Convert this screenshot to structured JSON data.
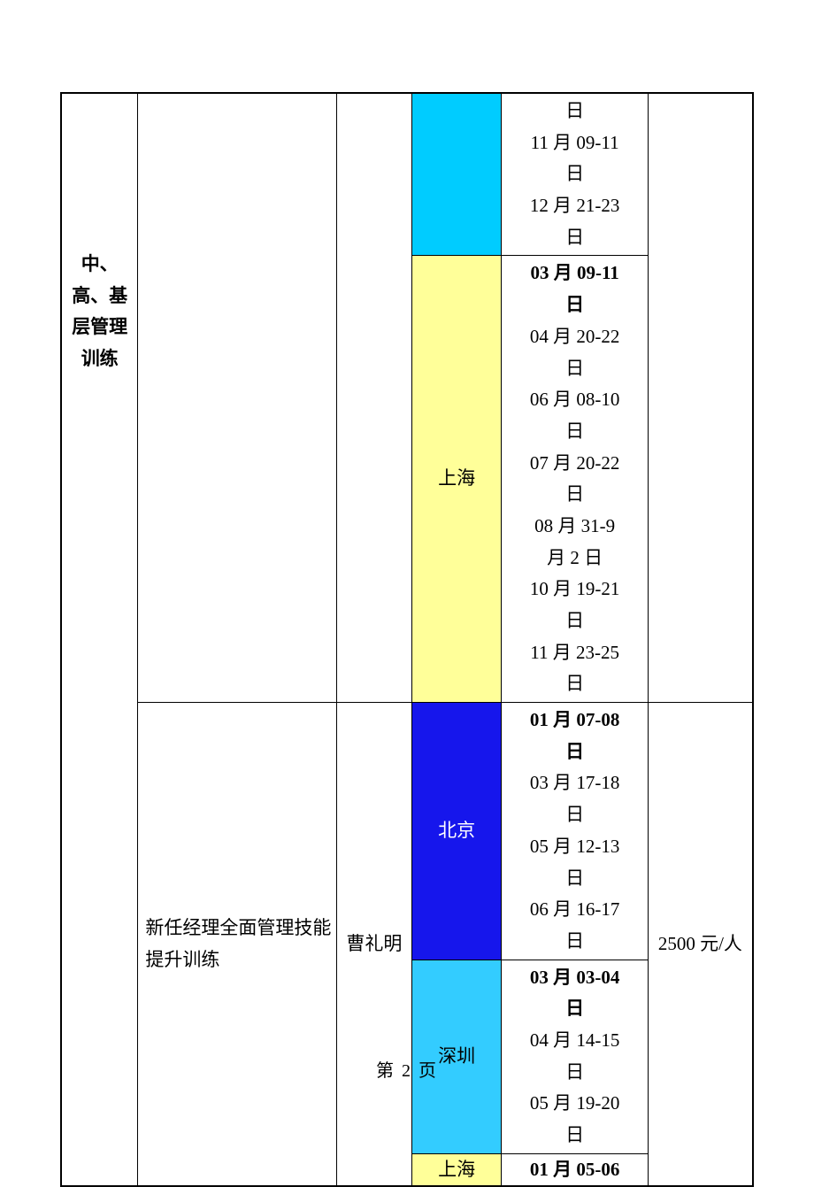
{
  "table": {
    "col_category": "中、高、基层管理训练",
    "rows": [
      {
        "location": "",
        "location_bg": "bg-cyan-bright",
        "dates_html": "日\n11 月 09-11\n日\n12 月 21-23\n日",
        "first_bold": false
      },
      {
        "location": "上海",
        "location_bg": "bg-yellow",
        "dates_first": "03 月 09-11\n日",
        "dates_rest": "04 月 20-22\n日\n06 月 08-10\n日\n07 月 20-22\n日\n08 月 31-9\n月 2 日\n10 月 19-21\n日\n11 月 23-25\n日"
      }
    ],
    "second_course": {
      "name": "新任经理全面管理技能提升训练",
      "instructor": "曹礼明",
      "price": "2500 元/人",
      "locations": [
        {
          "name": "北京",
          "bg": "bg-blue",
          "dates_first": "01 月 07-08\n日",
          "dates_rest": "03 月 17-18\n日\n05 月 12-13\n日\n06 月 16-17\n日"
        },
        {
          "name": "深圳",
          "bg": "bg-sky",
          "dates_first": "03 月 03-04\n日",
          "dates_rest": "04 月 14-15\n日\n05 月 19-20\n日"
        },
        {
          "name": "上海",
          "bg": "bg-yellow",
          "dates_first": "01 月 05-06"
        }
      ]
    }
  },
  "page_number": "第 2 页"
}
